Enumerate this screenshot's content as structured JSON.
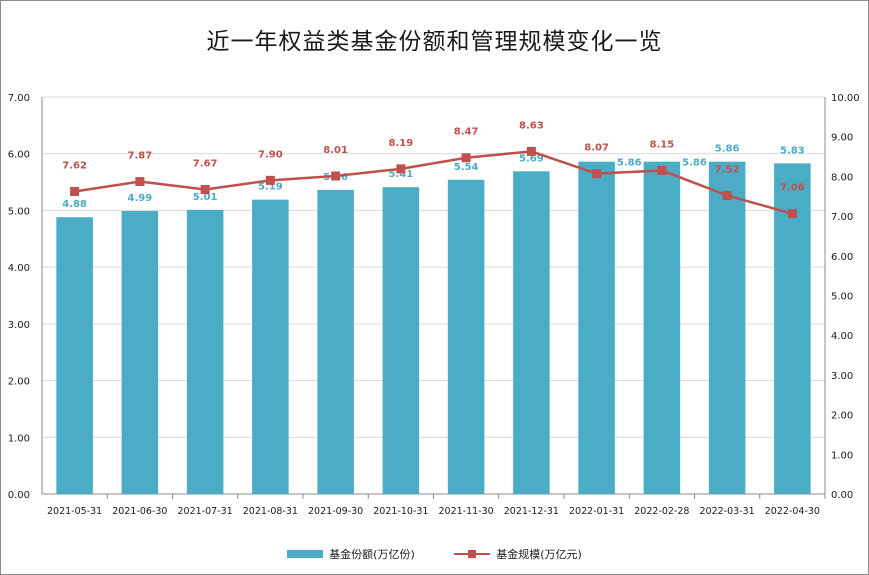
{
  "title": "近一年权益类基金份额和管理规模变化一览",
  "colors": {
    "bar": "#4bacc6",
    "line": "#c0504d",
    "grid": "#d9d9d9",
    "axis": "#8c8c8c"
  },
  "legend": {
    "bar_label": "基金份额(万亿份)",
    "line_label": "基金规模(万亿元)"
  },
  "chart_data": {
    "type": "bar",
    "title": "近一年权益类基金份额和管理规模变化一览",
    "categories": [
      "2021-05-31",
      "2021-06-30",
      "2021-07-31",
      "2021-08-31",
      "2021-09-30",
      "2021-10-31",
      "2021-11-30",
      "2021-12-31",
      "2022-01-31",
      "2022-02-28",
      "2022-03-31",
      "2022-04-30"
    ],
    "series": [
      {
        "name": "基金份额(万亿份)",
        "type": "bar",
        "axis": "left",
        "values": [
          4.88,
          4.99,
          5.01,
          5.19,
          5.36,
          5.41,
          5.54,
          5.69,
          5.86,
          5.86,
          5.86,
          5.83
        ]
      },
      {
        "name": "基金规模(万亿元)",
        "type": "line",
        "axis": "right",
        "values": [
          7.62,
          7.87,
          7.67,
          7.9,
          8.01,
          8.19,
          8.47,
          8.63,
          8.07,
          8.15,
          7.52,
          7.06
        ]
      }
    ],
    "ylim": [
      0,
      7
    ],
    "yticks": [
      "0.00",
      "1.00",
      "2.00",
      "3.00",
      "4.00",
      "5.00",
      "6.00",
      "7.00"
    ],
    "y2lim": [
      0,
      10
    ],
    "y2ticks": [
      "0.00",
      "1.00",
      "2.00",
      "3.00",
      "4.00",
      "5.00",
      "6.00",
      "7.00",
      "8.00",
      "9.00",
      "10.00"
    ],
    "grid": true,
    "legend_position": "bottom"
  }
}
